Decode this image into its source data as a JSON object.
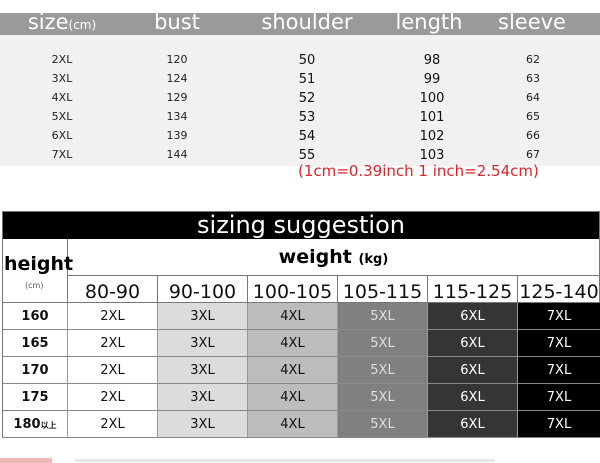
{
  "measurements": {
    "headers": {
      "size": "size",
      "size_unit": "(cm)",
      "bust": "bust",
      "shoulder": "shoulder",
      "length": "length",
      "sleeve": "sleeve"
    },
    "rows": [
      {
        "size": "2XL",
        "bust": "120",
        "shoulder": "50",
        "length": "98",
        "sleeve": "62"
      },
      {
        "size": "3XL",
        "bust": "124",
        "shoulder": "51",
        "length": "99",
        "sleeve": "63"
      },
      {
        "size": "4XL",
        "bust": "129",
        "shoulder": "52",
        "length": "100",
        "sleeve": "64"
      },
      {
        "size": "5XL",
        "bust": "134",
        "shoulder": "53",
        "length": "101",
        "sleeve": "65"
      },
      {
        "size": "6XL",
        "bust": "139",
        "shoulder": "54",
        "length": "102",
        "sleeve": "66"
      },
      {
        "size": "7XL",
        "bust": "144",
        "shoulder": "55",
        "length": "103",
        "sleeve": "67"
      }
    ],
    "conversion_note": "(1cm=0.39inch  1 inch=2.54cm)",
    "note_color": "#d6262b"
  },
  "suggestion": {
    "title": "sizing suggestion",
    "height_label": "height",
    "height_unit": "(cm)",
    "weight_label": "weight",
    "weight_unit": "(kg)",
    "weight_ranges": [
      "80-90",
      "90-100",
      "100-105",
      "105-115",
      "115-125",
      "125-140"
    ],
    "column_colors": [
      "#ffffff",
      "#dcdcdc",
      "#bdbdbd",
      "#808080",
      "#353535",
      "#000000"
    ],
    "rows": [
      {
        "height": "160",
        "suffix": "",
        "sizes": [
          "2XL",
          "3XL",
          "4XL",
          "5XL",
          "6XL",
          "7XL"
        ]
      },
      {
        "height": "165",
        "suffix": "",
        "sizes": [
          "2XL",
          "3XL",
          "4XL",
          "5XL",
          "6XL",
          "7XL"
        ]
      },
      {
        "height": "170",
        "suffix": "",
        "sizes": [
          "2XL",
          "3XL",
          "4XL",
          "5XL",
          "6XL",
          "7XL"
        ]
      },
      {
        "height": "175",
        "suffix": "",
        "sizes": [
          "2XL",
          "3XL",
          "4XL",
          "5XL",
          "6XL",
          "7XL"
        ]
      },
      {
        "height": "180",
        "suffix": "以上",
        "sizes": [
          "2XL",
          "3XL",
          "4XL",
          "5XL",
          "6XL",
          "7XL"
        ]
      }
    ]
  }
}
